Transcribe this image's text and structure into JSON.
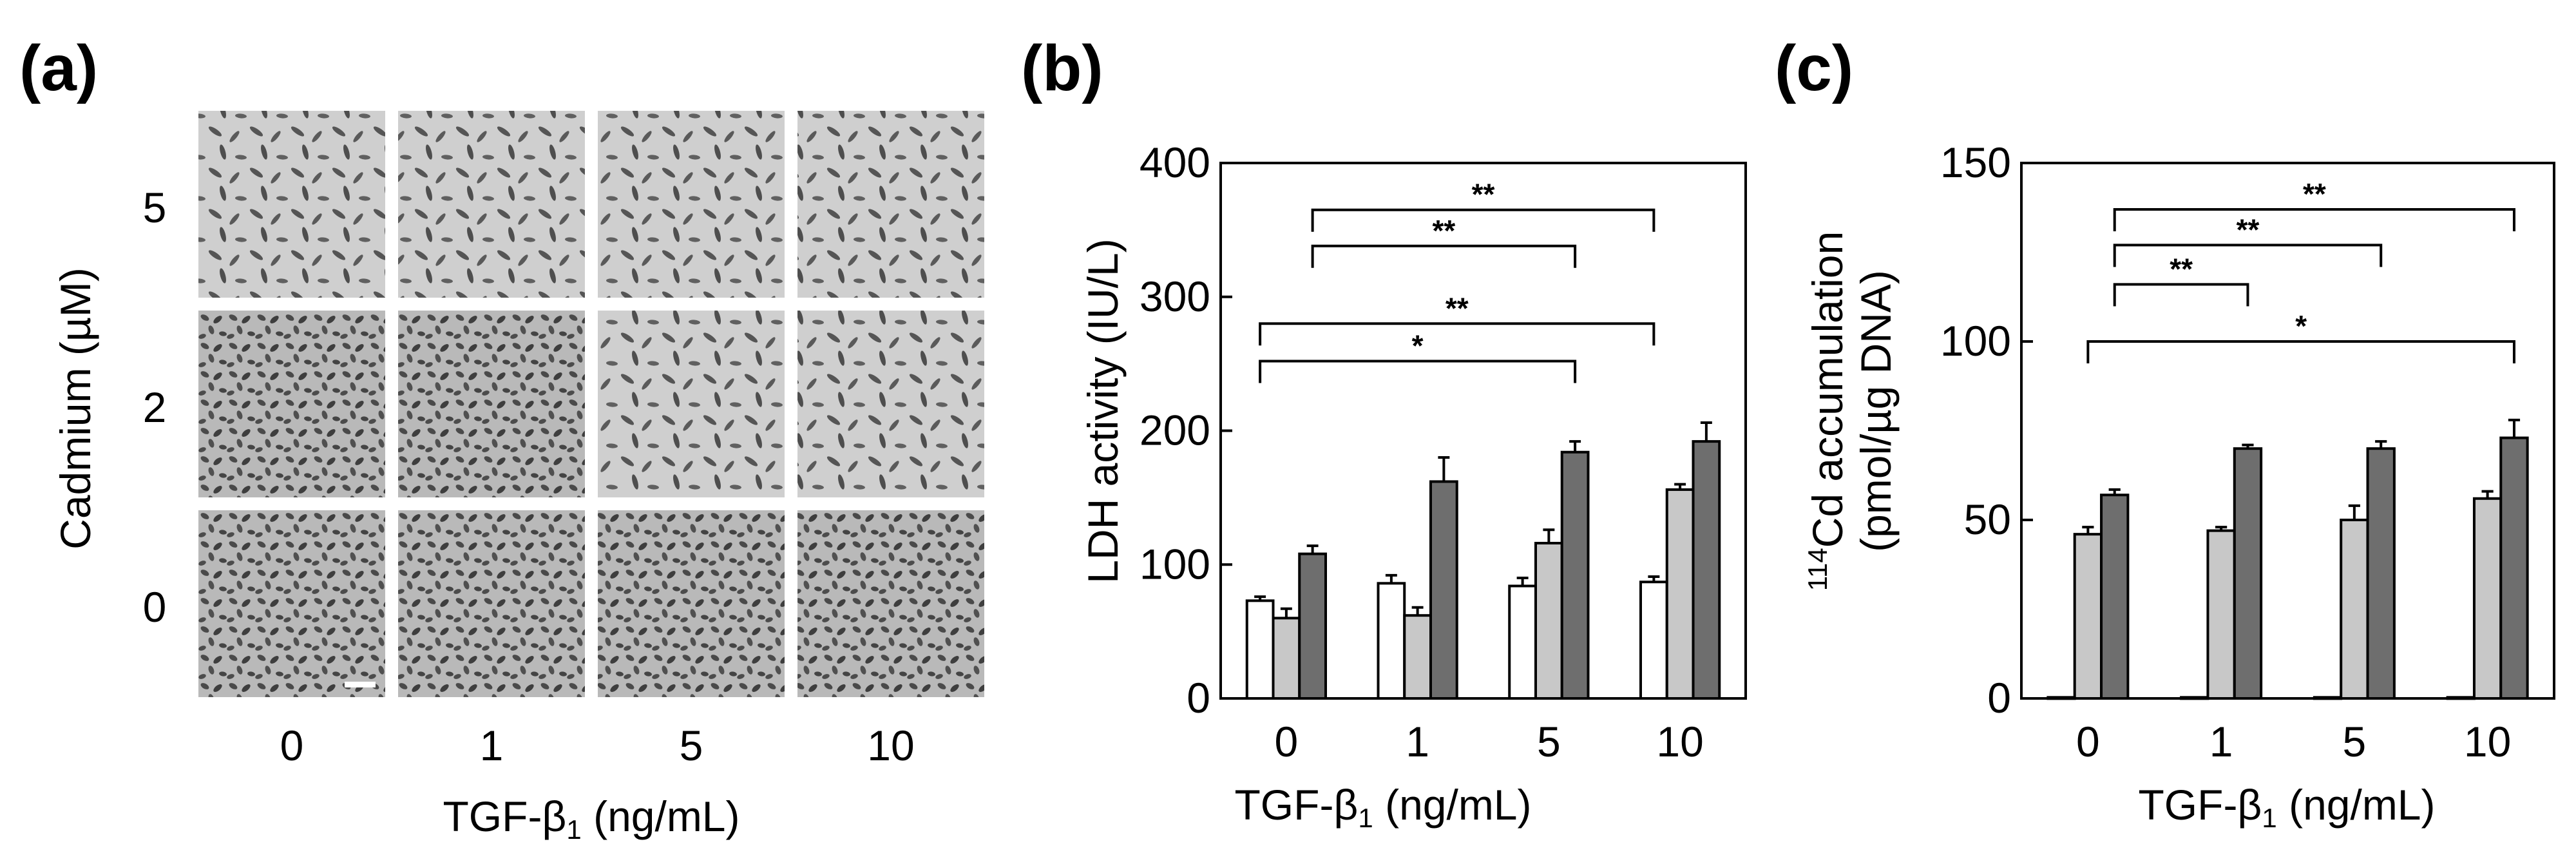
{
  "panels": {
    "a": {
      "label": "(a)",
      "ylabel": "Cadmium (µM)",
      "xlabel_main": "TGF-β",
      "xlabel_sub": "1",
      "xlabel_unit": " (ng/mL)",
      "columns": [
        "0",
        "1",
        "5",
        "10"
      ],
      "rows": [
        "5",
        "2",
        "0"
      ],
      "micrograph_description_note": "3x4 grid of phase-contrast micrographs"
    },
    "b": {
      "label": "(b)"
    },
    "c": {
      "label": "(c)"
    }
  },
  "chart_data": [
    {
      "id": "b",
      "type": "bar",
      "ylabel": "LDH activity (IU/L)",
      "xlabel_main": "TGF-β",
      "xlabel_sub": "1",
      "xlabel_unit": " (ng/mL)",
      "categories": [
        "0",
        "1",
        "5",
        "10"
      ],
      "ylim": [
        0,
        400
      ],
      "yticks": [
        "0",
        "100",
        "200",
        "300",
        "400"
      ],
      "series": [
        {
          "name": "Cadmium 0 µM",
          "color": "#ffffff",
          "values": [
            73,
            86,
            84,
            87
          ],
          "errors": [
            3,
            6,
            6,
            4
          ]
        },
        {
          "name": "Cadmium 2 µM",
          "color": "#c8c8c8",
          "values": [
            60,
            62,
            116,
            156
          ],
          "errors": [
            7,
            6,
            10,
            4
          ]
        },
        {
          "name": "Cadmium 5 µM",
          "color": "#6e6e6e",
          "values": [
            108,
            162,
            184,
            192
          ],
          "errors": [
            6,
            18,
            8,
            14
          ]
        }
      ],
      "significance": [
        {
          "label": "**",
          "from_category": 0,
          "to_category": 3,
          "to_series": 0,
          "y": 365,
          "from_series": 2
        },
        {
          "label": "**",
          "from_category": 0,
          "to_category": 2,
          "to_series": 2,
          "y": 338,
          "from_series": 2
        },
        {
          "label": "**",
          "from_category": 0,
          "to_category": 3,
          "to_series": 0,
          "y": 280,
          "from_series": 0
        },
        {
          "label": "*",
          "from_category": 0,
          "to_category": 2,
          "to_series": 2,
          "y": 252,
          "from_series": 0
        }
      ]
    },
    {
      "id": "c",
      "type": "bar",
      "ylabel_sup": "114",
      "ylabel_line1": "Cd accumulation",
      "ylabel_line2": "(pmol/µg DNA)",
      "xlabel_main": "TGF-β",
      "xlabel_sub": "1",
      "xlabel_unit": " (ng/mL)",
      "categories": [
        "0",
        "1",
        "5",
        "10"
      ],
      "ylim": [
        0,
        150
      ],
      "yticks": [
        "0",
        "50",
        "100",
        "150"
      ],
      "series": [
        {
          "name": "Cadmium 0 µM",
          "color": "#ffffff",
          "values": [
            0.3,
            0.3,
            0.3,
            0.3
          ],
          "errors": [
            0,
            0,
            0,
            0
          ]
        },
        {
          "name": "Cadmium 2 µM",
          "color": "#c8c8c8",
          "values": [
            46,
            47,
            50,
            56
          ],
          "errors": [
            2,
            1,
            4,
            2
          ]
        },
        {
          "name": "Cadmium 5 µM",
          "color": "#6e6e6e",
          "values": [
            57,
            70,
            70,
            73
          ],
          "errors": [
            1.5,
            1,
            2,
            5
          ]
        }
      ],
      "significance": [
        {
          "label": "**",
          "from_category": 0,
          "to_category": 3,
          "to_series": 2,
          "y": 137,
          "from_series": 2
        },
        {
          "label": "**",
          "from_category": 0,
          "to_category": 2,
          "to_series": 2,
          "y": 127,
          "from_series": 2
        },
        {
          "label": "**",
          "from_category": 0,
          "to_category": 1,
          "to_series": 2,
          "y": 116,
          "from_series": 2
        },
        {
          "label": "*",
          "from_category": 0,
          "to_category": 3,
          "to_series": 2,
          "y": 100,
          "from_series": 1
        }
      ]
    }
  ]
}
